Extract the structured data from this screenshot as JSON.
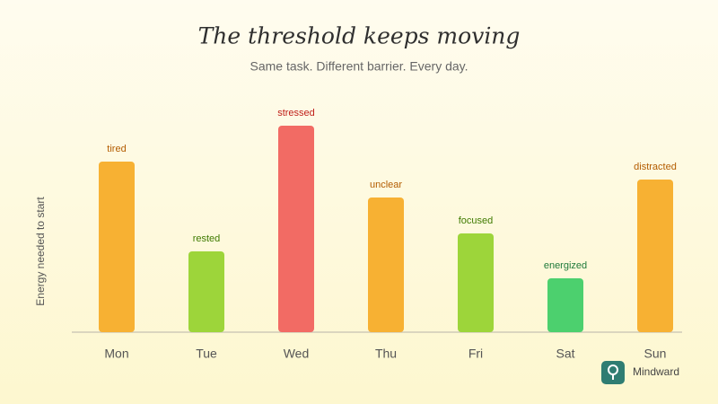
{
  "chart_data": {
    "type": "bar",
    "title": "The threshold keeps moving",
    "subtitle": "Same task. Different barrier. Every day.",
    "y_label": "Energy needed to start",
    "categories": [
      "Mon",
      "Tue",
      "Wed",
      "Thu",
      "Fri",
      "Sat",
      "Sun"
    ],
    "values": [
      190,
      90,
      230,
      150,
      110,
      60,
      170
    ],
    "annotations": [
      "tired",
      "rested",
      "stressed",
      "unclear",
      "focused",
      "energized",
      "distracted"
    ],
    "colors": [
      "#f7b133",
      "#9dd53a",
      "#f26b64",
      "#f7b133",
      "#9dd53a",
      "#4cd06e",
      "#f7b133"
    ],
    "annotation_colors": [
      "#b35c00",
      "#3f7a00",
      "#c0201a",
      "#b35c00",
      "#3f7a00",
      "#1f7a3a",
      "#b35c00"
    ],
    "ylim": [
      0,
      230
    ],
    "brand": "Mindward"
  }
}
